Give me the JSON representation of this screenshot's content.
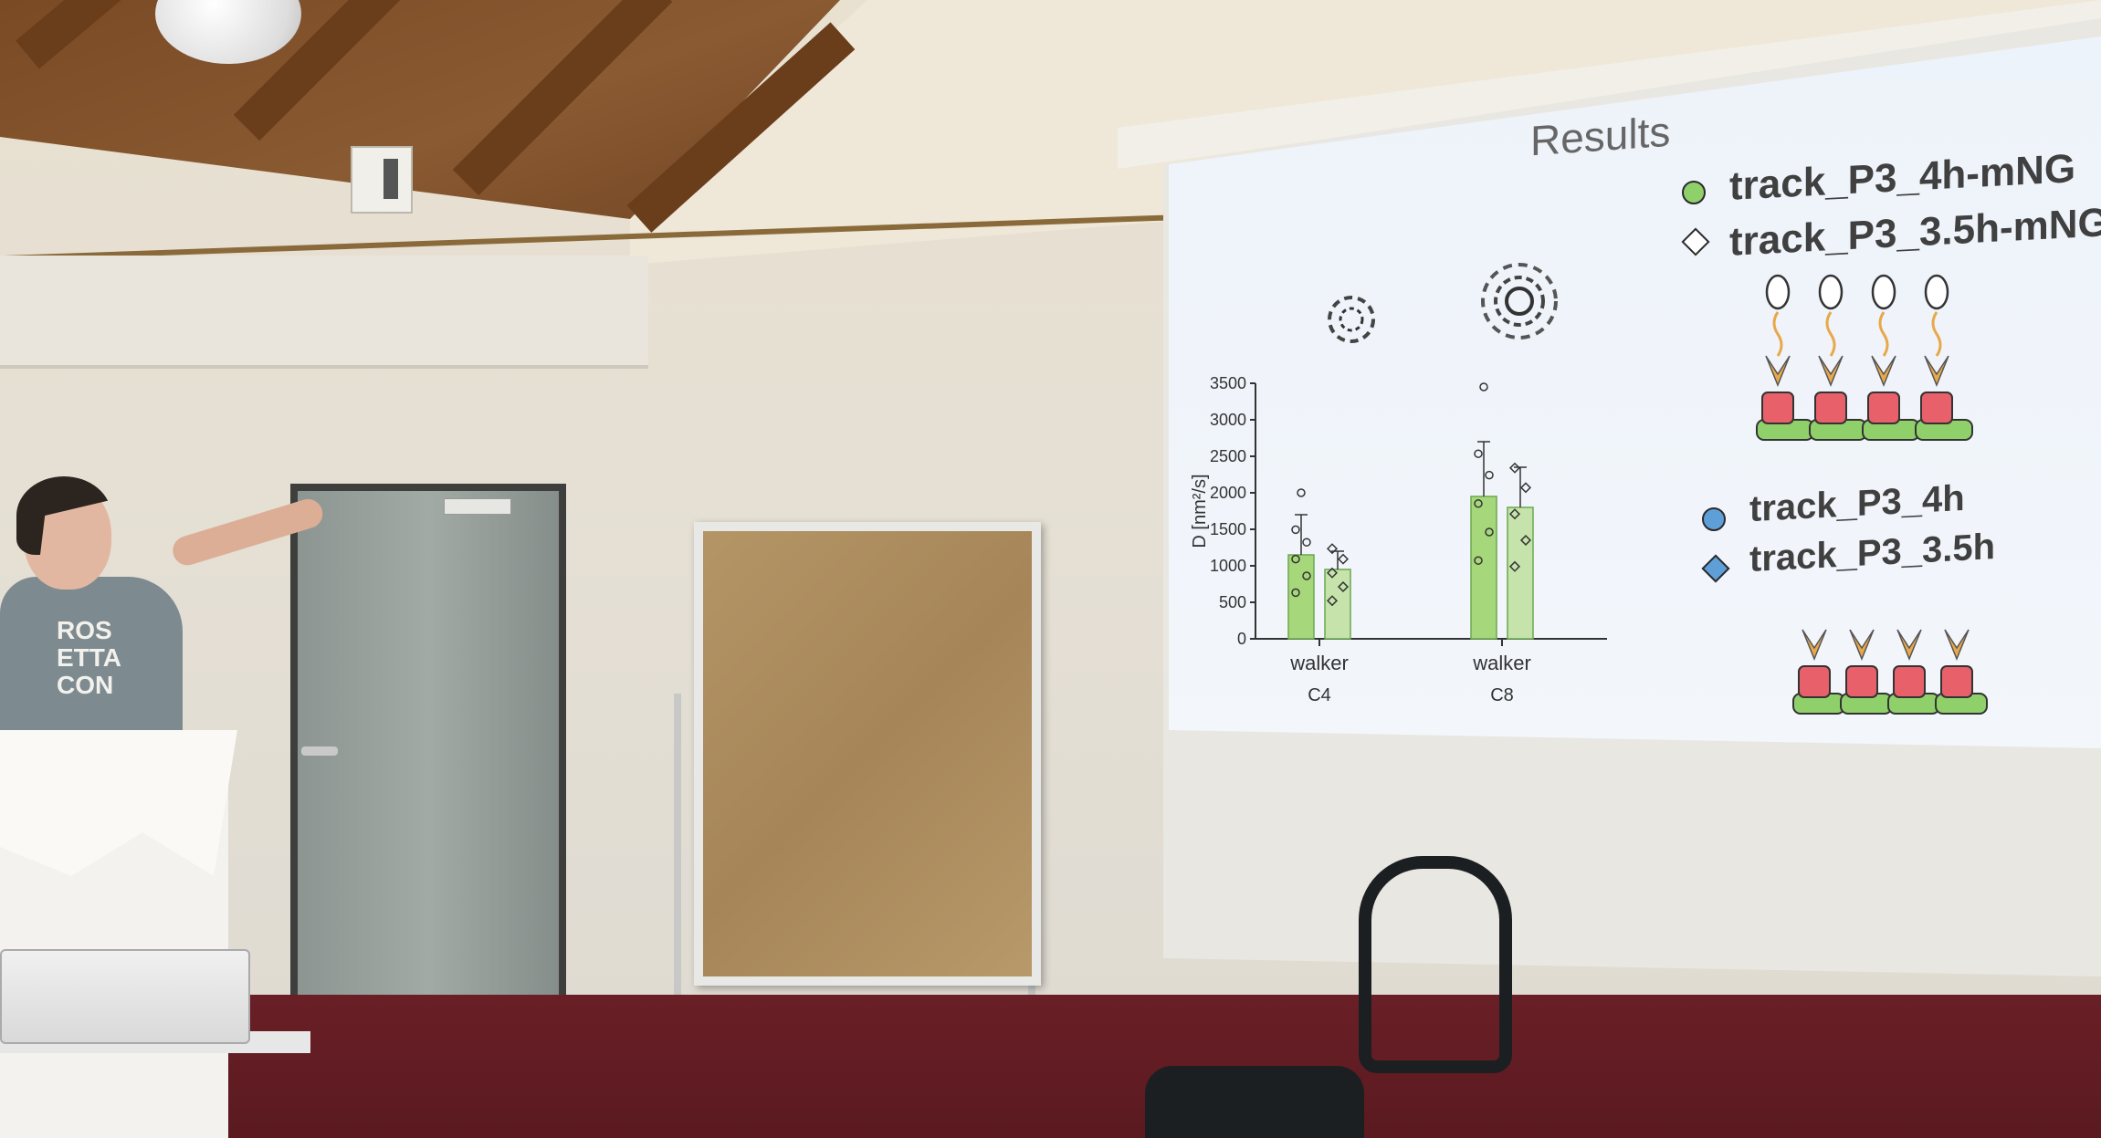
{
  "slide": {
    "title": "Results",
    "legend": [
      {
        "marker": "circle",
        "color": "#8fd06a",
        "label": "track_P3_4h-mNG"
      },
      {
        "marker": "diamond",
        "color": "#ffffff",
        "label": "track_P3_3.5h-mNG"
      },
      {
        "marker": "circle",
        "color": "#5f9fd8",
        "label": "track_P3_4h"
      },
      {
        "marker": "diamond",
        "color": "#5f9fd8",
        "label": "track_P3_3.5h"
      }
    ]
  },
  "chart_data": {
    "type": "bar",
    "ylabel": "D [nm²/s]",
    "ylim": [
      0,
      3500
    ],
    "yticks": [
      "0",
      "500",
      "1000",
      "1500",
      "2000",
      "2500",
      "3000",
      "3500"
    ],
    "categories": [
      {
        "line1": "walker",
        "line2": "C4"
      },
      {
        "line1": "walker",
        "line2": "C8"
      }
    ],
    "series": [
      {
        "marker": "circle",
        "values": [
          1150,
          1950
        ],
        "error": [
          550,
          750
        ]
      },
      {
        "marker": "diamond",
        "values": [
          950,
          1800
        ],
        "error": [
          250,
          550
        ]
      }
    ],
    "outliers": [
      {
        "category": 0,
        "series": 0,
        "value": 2000
      },
      {
        "category": 1,
        "series": 0,
        "value": 3450
      }
    ],
    "colors": {
      "bar": "#a6d77a",
      "bar_edge": "#6aa84f",
      "axis": "#333333"
    }
  },
  "shirt": {
    "logo_lines": [
      "ROS",
      "ETTA",
      "CON"
    ]
  }
}
